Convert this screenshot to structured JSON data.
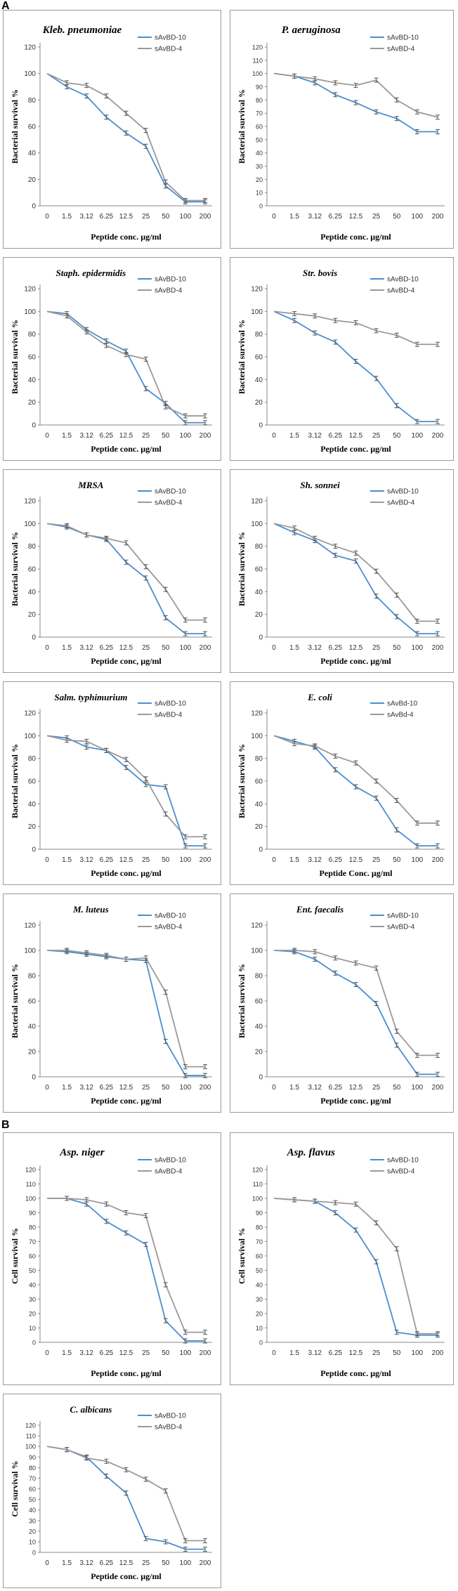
{
  "section_labels": {
    "a": "A",
    "b": "B"
  },
  "colors": {
    "series_1": "#4a8ed0",
    "series_2": "#9a9a9a",
    "axis": "#888888",
    "error_bar": "#555555"
  },
  "chart_data": [
    {
      "type": "line",
      "title": "Kleb. pneumoniae",
      "xlabel": "Peptide conc. µg/ml",
      "ylabel": "Bacterial survival %",
      "categories": [
        "0",
        "1.5",
        "3.12",
        "6.25",
        "12.5",
        "25",
        "50",
        "100",
        "200"
      ],
      "ylim": [
        0,
        120
      ],
      "yticks": [
        0,
        20,
        40,
        60,
        80,
        100,
        120
      ],
      "series": [
        {
          "name": "sAvBD-10",
          "values": [
            100,
            90,
            83,
            67,
            55,
            45,
            15,
            3,
            3
          ]
        },
        {
          "name": "sAvBD-4",
          "values": [
            100,
            93,
            91,
            83,
            70,
            57,
            18,
            4,
            4
          ]
        }
      ]
    },
    {
      "type": "line",
      "title": "P. aeruginosa",
      "xlabel": "Peptide conc. µg/ml",
      "ylabel": "Bacterial survival %",
      "categories": [
        "0",
        "1.5",
        "3.12",
        "6.25",
        "12.5",
        "25",
        "50",
        "100",
        "200"
      ],
      "ylim": [
        0,
        120
      ],
      "yticks": [
        0,
        10,
        20,
        30,
        40,
        50,
        60,
        70,
        80,
        90,
        100,
        110,
        120
      ],
      "series": [
        {
          "name": "sAvBD-10",
          "values": [
            100,
            98,
            93,
            84,
            78,
            71,
            66,
            56,
            56
          ]
        },
        {
          "name": "sAvBD-4",
          "values": [
            100,
            98,
            96,
            93,
            91,
            95,
            80,
            71,
            67
          ]
        }
      ]
    },
    {
      "type": "line",
      "title": "Staph. epidermidis",
      "xlabel": "Peptide conc. µg/ml",
      "ylabel": "Bacterial survival %",
      "categories": [
        "0",
        "1.5",
        "3.12",
        "6.25",
        "12.5",
        "25",
        "50",
        "100",
        "200"
      ],
      "ylim": [
        0,
        120
      ],
      "yticks": [
        0,
        20,
        40,
        60,
        80,
        100,
        120
      ],
      "series": [
        {
          "name": "sAvBD-10",
          "values": [
            100,
            98,
            84,
            74,
            65,
            32,
            19,
            2,
            2
          ]
        },
        {
          "name": "sAvBD-4",
          "values": [
            100,
            96,
            82,
            70,
            62,
            58,
            16,
            8,
            8
          ]
        }
      ]
    },
    {
      "type": "line",
      "title": "Str. bovis",
      "xlabel": "Peptide conc. µg/ml",
      "ylabel": "Bacterial survival %",
      "categories": [
        "0",
        "1.5",
        "3.12",
        "6.25",
        "12.5",
        "25",
        "50",
        "100",
        "200"
      ],
      "ylim": [
        0,
        120
      ],
      "yticks": [
        0,
        20,
        40,
        60,
        80,
        100,
        120
      ],
      "series": [
        {
          "name": "sAvBD-10",
          "values": [
            100,
            92,
            81,
            73,
            56,
            41,
            17,
            3,
            3
          ]
        },
        {
          "name": "sAvBD-4",
          "values": [
            100,
            98,
            96,
            92,
            90,
            83,
            79,
            71,
            71
          ]
        }
      ]
    },
    {
      "type": "line",
      "title": "MRSA",
      "xlabel": "Peptide conc, µg/ml",
      "ylabel": "Bacterial survival %",
      "categories": [
        "0",
        "1.5",
        "3.12",
        "6.25",
        "12.5",
        "25",
        "50",
        "100",
        "200"
      ],
      "ylim": [
        0,
        120
      ],
      "yticks": [
        0,
        20,
        40,
        60,
        80,
        100,
        120
      ],
      "series": [
        {
          "name": "sAvBD-10",
          "values": [
            100,
            97,
            90,
            86,
            66,
            52,
            17,
            3,
            3
          ]
        },
        {
          "name": "sAvBD-4",
          "values": [
            100,
            98,
            90,
            87,
            83,
            62,
            42,
            15,
            15
          ]
        }
      ]
    },
    {
      "type": "line",
      "title": "Sh. sonnei",
      "xlabel": "Peptide conc. µg/ml",
      "ylabel": "Bacterial survival %",
      "categories": [
        "0",
        "1.5",
        "3.12",
        "6.25",
        "12.5",
        "25",
        "50",
        "100",
        "200"
      ],
      "ylim": [
        0,
        120
      ],
      "yticks": [
        0,
        20,
        40,
        60,
        80,
        100,
        120
      ],
      "series": [
        {
          "name": "sAvBD-10",
          "values": [
            100,
            92,
            85,
            72,
            67,
            36,
            18,
            3,
            3
          ]
        },
        {
          "name": "sAvBD-4",
          "values": [
            100,
            96,
            87,
            80,
            74,
            58,
            37,
            14,
            14
          ]
        }
      ]
    },
    {
      "type": "line",
      "title": "Salm. typhimurium",
      "xlabel": "Peptide conc. µg/ml",
      "ylabel": "Bacterial survival %",
      "categories": [
        "0",
        "1.5",
        "3.12",
        "6.25",
        "12.5",
        "25",
        "50",
        "100",
        "200"
      ],
      "ylim": [
        0,
        120
      ],
      "yticks": [
        0,
        20,
        40,
        60,
        80,
        100,
        120
      ],
      "series": [
        {
          "name": "sAvBD-10",
          "values": [
            100,
            98,
            90,
            87,
            72,
            57,
            55,
            3,
            3
          ]
        },
        {
          "name": "sAvBD-4",
          "values": [
            100,
            96,
            95,
            87,
            79,
            62,
            31,
            11,
            11
          ]
        }
      ]
    },
    {
      "type": "line",
      "title": "E. coli",
      "xlabel": "Peptide Conc. µg/ml",
      "ylabel": "Bacterial survival %",
      "categories": [
        "0",
        "1.5",
        "3.12",
        "6.25",
        "12.5",
        "25",
        "50",
        "100",
        "200"
      ],
      "ylim": [
        0,
        120
      ],
      "yticks": [
        0,
        20,
        40,
        60,
        80,
        100,
        120
      ],
      "series": [
        {
          "name": "sAvBd-10",
          "values": [
            100,
            95,
            90,
            70,
            55,
            45,
            17,
            3,
            3
          ]
        },
        {
          "name": "sAvBd-4",
          "values": [
            100,
            93,
            91,
            82,
            76,
            60,
            43,
            23,
            23
          ]
        }
      ]
    },
    {
      "type": "line",
      "title": "M. luteus",
      "xlabel": "Peptide conc. µg/ml",
      "ylabel": "Bacterial survival %",
      "categories": [
        "0",
        "1.5",
        "3.12",
        "6.25",
        "12.5",
        "25",
        "50",
        "100",
        "200"
      ],
      "ylim": [
        0,
        120
      ],
      "yticks": [
        0,
        20,
        40,
        60,
        80,
        100,
        120
      ],
      "series": [
        {
          "name": "sAvBD-10",
          "values": [
            100,
            99,
            97,
            95,
            93,
            92,
            28,
            1,
            1
          ]
        },
        {
          "name": "sAvBD-4",
          "values": [
            100,
            100,
            98,
            96,
            93,
            94,
            67,
            8,
            8
          ]
        }
      ]
    },
    {
      "type": "line",
      "title": "Ent. faecalis",
      "xlabel": "Peptide conc. µg/ml",
      "ylabel": "Bacterial survival %",
      "categories": [
        "0",
        "1.5",
        "3.12",
        "6.25",
        "12.5",
        "25",
        "50",
        "100",
        "200"
      ],
      "ylim": [
        0,
        120
      ],
      "yticks": [
        0,
        20,
        40,
        60,
        80,
        100,
        120
      ],
      "series": [
        {
          "name": "sAvBD-10",
          "values": [
            100,
            99,
            93,
            82,
            73,
            58,
            25,
            2,
            2
          ]
        },
        {
          "name": "sAvBD-4",
          "values": [
            100,
            100,
            99,
            94,
            90,
            86,
            36,
            17,
            17
          ]
        }
      ]
    },
    {
      "type": "line",
      "title": "Asp. niger",
      "xlabel": "Peptide conc. µg/ml",
      "ylabel": "Cell survival %",
      "categories": [
        "0",
        "1.5",
        "3.12",
        "6.25",
        "12.5",
        "25",
        "50",
        "100",
        "200"
      ],
      "ylim": [
        0,
        120
      ],
      "yticks": [
        0,
        10,
        20,
        30,
        40,
        50,
        60,
        70,
        80,
        90,
        100,
        110,
        120
      ],
      "series": [
        {
          "name": "sAvBD-10",
          "values": [
            100,
            100,
            96,
            84,
            76,
            68,
            15,
            1,
            1
          ]
        },
        {
          "name": "sAvBD-4",
          "values": [
            100,
            100,
            99,
            96,
            90,
            88,
            40,
            7,
            7
          ]
        }
      ]
    },
    {
      "type": "line",
      "title": "Asp. flavus",
      "xlabel": "Peptide conc. µg/ml",
      "ylabel": "Cell survival %",
      "categories": [
        "0",
        "1.5",
        "3.12",
        "6.25",
        "12.5",
        "25",
        "50",
        "100",
        "200"
      ],
      "ylim": [
        0,
        120
      ],
      "yticks": [
        0,
        10,
        20,
        30,
        40,
        50,
        60,
        70,
        80,
        90,
        100,
        110,
        120
      ],
      "series": [
        {
          "name": "sAvBD-10",
          "values": [
            100,
            99,
            98,
            90,
            78,
            56,
            7,
            5,
            5
          ]
        },
        {
          "name": "sAvBD-4",
          "values": [
            100,
            99,
            98,
            97,
            96,
            83,
            65,
            6,
            6
          ]
        }
      ]
    },
    {
      "type": "line",
      "title": "C. albicans",
      "xlabel": "Peptide conc. µg/ml",
      "ylabel": "Cell survival %",
      "categories": [
        "0",
        "1.5",
        "3.12",
        "6.25",
        "12.5",
        "25",
        "50",
        "100",
        "200"
      ],
      "ylim": [
        0,
        120
      ],
      "yticks": [
        0,
        10,
        20,
        30,
        40,
        50,
        60,
        70,
        80,
        90,
        100,
        110,
        120
      ],
      "series": [
        {
          "name": "sAvBD-10",
          "values": [
            100,
            97,
            90,
            72,
            56,
            13,
            10,
            3,
            3
          ]
        },
        {
          "name": "sAvBD-4",
          "values": [
            100,
            97,
            89,
            86,
            78,
            69,
            58,
            11,
            11
          ]
        }
      ]
    }
  ]
}
